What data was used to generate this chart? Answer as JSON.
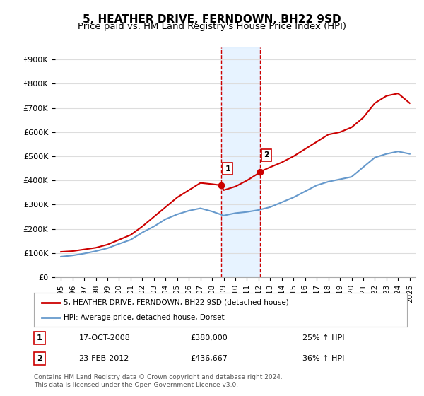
{
  "title": "5, HEATHER DRIVE, FERNDOWN, BH22 9SD",
  "subtitle": "Price paid vs. HM Land Registry's House Price Index (HPI)",
  "ylabel": "",
  "ylim": [
    0,
    950000
  ],
  "yticks": [
    0,
    100000,
    200000,
    300000,
    400000,
    500000,
    600000,
    700000,
    800000,
    900000
  ],
  "ytick_labels": [
    "£0",
    "£100K",
    "£200K",
    "£300K",
    "£400K",
    "£500K",
    "£600K",
    "£700K",
    "£800K",
    "£900K"
  ],
  "title_fontsize": 11,
  "subtitle_fontsize": 9.5,
  "legend_label_red": "5, HEATHER DRIVE, FERNDOWN, BH22 9SD (detached house)",
  "legend_label_blue": "HPI: Average price, detached house, Dorset",
  "annotation1_label": "1",
  "annotation1_date": "17-OCT-2008",
  "annotation1_price": "£380,000",
  "annotation1_hpi": "25% ↑ HPI",
  "annotation2_label": "2",
  "annotation2_date": "23-FEB-2012",
  "annotation2_price": "£436,667",
  "annotation2_hpi": "36% ↑ HPI",
  "footer": "Contains HM Land Registry data © Crown copyright and database right 2024.\nThis data is licensed under the Open Government Licence v3.0.",
  "red_color": "#cc0000",
  "blue_color": "#6699cc",
  "bg_color": "#ffffff",
  "grid_color": "#dddddd",
  "highlight_fill": "#ddeeff",
  "highlight_edge": "#cc0000",
  "x_start_year": 1995,
  "x_end_year": 2025,
  "sale1_year": 2008.8,
  "sale1_price": 380000,
  "sale2_year": 2012.15,
  "sale2_price": 436667,
  "red_line_data_x": [
    1995,
    1996,
    1997,
    1998,
    1999,
    2000,
    2001,
    2002,
    2003,
    2004,
    2005,
    2006,
    2007,
    2008,
    2008.8,
    2009,
    2010,
    2011,
    2012,
    2012.15,
    2013,
    2014,
    2015,
    2016,
    2017,
    2018,
    2019,
    2020,
    2021,
    2022,
    2023,
    2024,
    2025
  ],
  "red_line_data_y": [
    105000,
    108000,
    115000,
    122000,
    135000,
    155000,
    175000,
    210000,
    250000,
    290000,
    330000,
    360000,
    390000,
    385000,
    380000,
    360000,
    375000,
    400000,
    430000,
    436667,
    455000,
    475000,
    500000,
    530000,
    560000,
    590000,
    600000,
    620000,
    660000,
    720000,
    750000,
    760000,
    720000
  ],
  "blue_line_data_x": [
    1995,
    1996,
    1997,
    1998,
    1999,
    2000,
    2001,
    2002,
    2003,
    2004,
    2005,
    2006,
    2007,
    2008,
    2009,
    2010,
    2011,
    2012,
    2013,
    2014,
    2015,
    2016,
    2017,
    2018,
    2019,
    2020,
    2021,
    2022,
    2023,
    2024,
    2025
  ],
  "blue_line_data_y": [
    85000,
    90000,
    98000,
    108000,
    120000,
    138000,
    155000,
    185000,
    210000,
    240000,
    260000,
    275000,
    285000,
    272000,
    255000,
    265000,
    270000,
    278000,
    290000,
    310000,
    330000,
    355000,
    380000,
    395000,
    405000,
    415000,
    455000,
    495000,
    510000,
    520000,
    510000
  ]
}
